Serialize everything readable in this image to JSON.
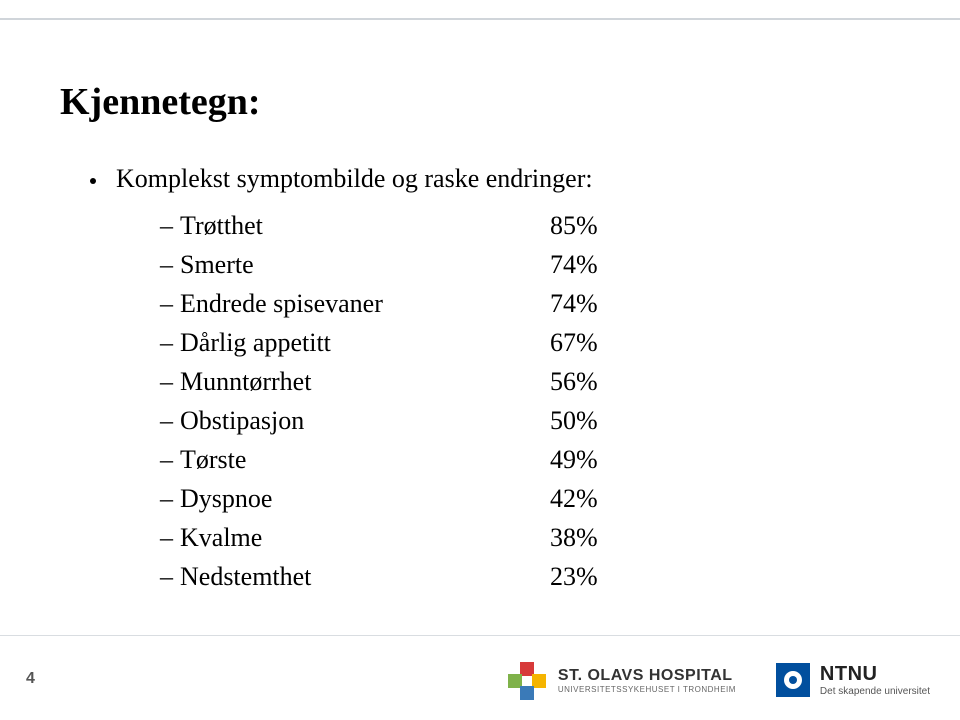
{
  "title": "Kjennetegn:",
  "main_bullet": "Komplekst symptombilde og raske endringer:",
  "items": [
    {
      "label": "Trøtthet",
      "value": "85%"
    },
    {
      "label": "Smerte",
      "value": "74%"
    },
    {
      "label": "Endrede spisevaner",
      "value": "74%"
    },
    {
      "label": "Dårlig appetitt",
      "value": "67%"
    },
    {
      "label": "Munntørrhet",
      "value": "56%"
    },
    {
      "label": "Obstipasjon",
      "value": "50%"
    },
    {
      "label": "Tørste",
      "value": "49%"
    },
    {
      "label": "Dyspnoe",
      "value": "42%"
    },
    {
      "label": "Kvalme",
      "value": "38%"
    },
    {
      "label": "Nedstemthet",
      "value": "23%"
    }
  ],
  "page_number": "4",
  "footer": {
    "olav": {
      "main": "ST. OLAVS HOSPITAL",
      "sub": "UNIVERSITETSSYKEHUSET I TRONDHEIM"
    },
    "ntnu": {
      "main": "NTNU",
      "sub": "Det skapende universitet"
    }
  },
  "style": {
    "background_color": "#ffffff",
    "title_fontsize": 38,
    "body_fontsize": 26,
    "text_color": "#000000",
    "rule_color": "#d0d5da",
    "olav_colors": [
      "#d73a3a",
      "#7fb24a",
      "#f5b400",
      "#3a7ab8"
    ],
    "ntnu_color": "#014f9e"
  }
}
